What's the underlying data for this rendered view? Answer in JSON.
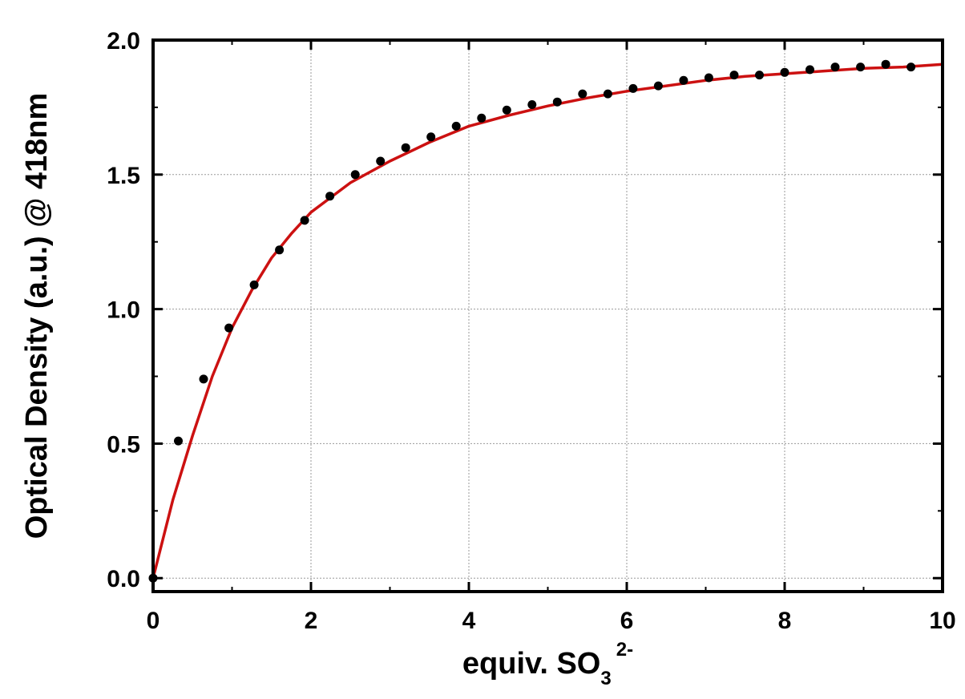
{
  "chart_data": {
    "type": "scatter",
    "xlabel": {
      "main": "equiv. SO",
      "subscript": "3",
      "superscript": "2-"
    },
    "ylabel": "Optical Density (a.u.) @  418nm",
    "xlim": [
      0,
      10
    ],
    "ylim": [
      -0.05,
      2.0
    ],
    "x_ticks": [
      0,
      2,
      4,
      6,
      8,
      10
    ],
    "x_tick_labels": [
      "0",
      "2",
      "4",
      "6",
      "8",
      "10"
    ],
    "y_ticks": [
      0.0,
      0.5,
      1.0,
      1.5,
      2.0
    ],
    "y_tick_labels": [
      "0.0",
      "0.5",
      "1.0",
      "1.5",
      "2.0"
    ],
    "grid": true,
    "colors": {
      "points": "#000000",
      "fit_line": "#cc1111",
      "grid": "#9a9a9a",
      "axes": "#000000"
    },
    "series": [
      {
        "kind": "points",
        "x": [
          0.0,
          0.32,
          0.64,
          0.96,
          1.28,
          1.6,
          1.92,
          2.24,
          2.56,
          2.88,
          3.2,
          3.52,
          3.84,
          4.16,
          4.48,
          4.8,
          5.12,
          5.44,
          5.76,
          6.08,
          6.4,
          6.72,
          7.04,
          7.36,
          7.68,
          8.0,
          8.32,
          8.64,
          8.96,
          9.28,
          9.6
        ],
        "y": [
          0.0,
          0.51,
          0.74,
          0.93,
          1.09,
          1.22,
          1.33,
          1.42,
          1.5,
          1.55,
          1.6,
          1.64,
          1.68,
          1.71,
          1.74,
          1.76,
          1.77,
          1.8,
          1.8,
          1.82,
          1.83,
          1.85,
          1.86,
          1.87,
          1.87,
          1.88,
          1.89,
          1.9,
          1.9,
          1.91,
          1.9
        ]
      },
      {
        "kind": "line",
        "x": [
          0.0,
          0.25,
          0.5,
          0.75,
          1.0,
          1.25,
          1.5,
          1.75,
          2.0,
          2.5,
          3.0,
          3.5,
          4.0,
          4.5,
          5.0,
          5.5,
          6.0,
          6.5,
          7.0,
          7.5,
          8.0,
          8.5,
          9.0,
          9.5,
          10.0
        ],
        "y": [
          0.0,
          0.29,
          0.53,
          0.75,
          0.93,
          1.07,
          1.19,
          1.28,
          1.36,
          1.47,
          1.55,
          1.62,
          1.68,
          1.72,
          1.755,
          1.785,
          1.81,
          1.83,
          1.85,
          1.865,
          1.875,
          1.885,
          1.895,
          1.9,
          1.91
        ]
      }
    ]
  }
}
